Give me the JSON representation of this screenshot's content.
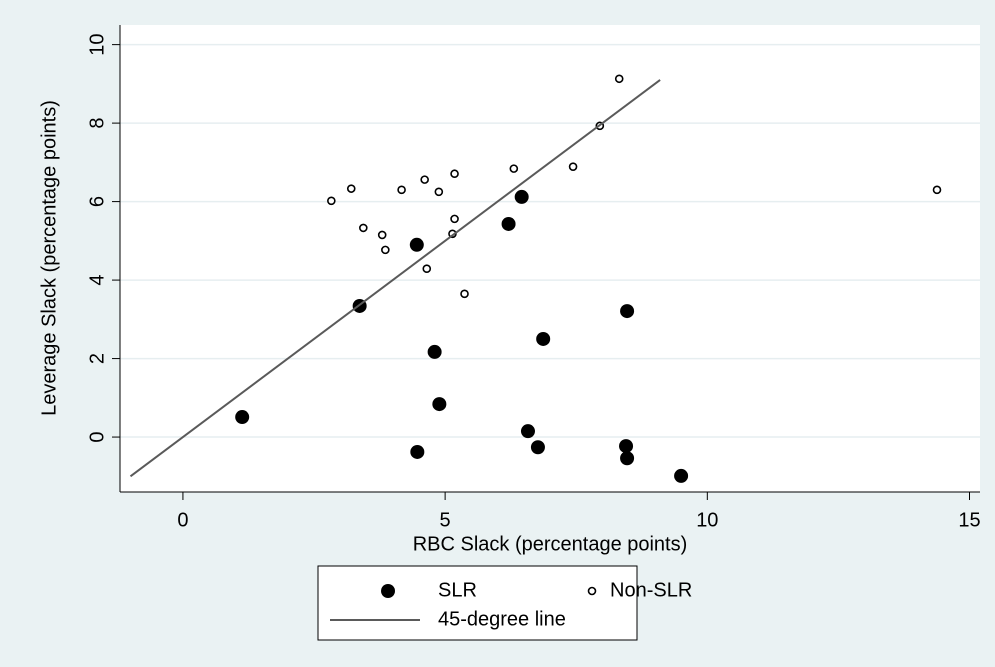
{
  "chart_data": {
    "type": "scatter",
    "x_label": "RBC Slack (percentage points)",
    "y_label": "Leverage Slack (percentage points)",
    "xlim": [
      -1.2,
      15.2
    ],
    "ylim": [
      -1.4,
      10.5
    ],
    "xticks": [
      0,
      5,
      10,
      15
    ],
    "yticks": [
      0,
      2,
      4,
      6,
      8,
      10
    ],
    "grid": true,
    "series": [
      {
        "name": "SLR",
        "color": "#000000",
        "marker": "filled",
        "x": [
          1.13,
          3.37,
          4.46,
          4.47,
          4.8,
          4.89,
          6.21,
          6.46,
          6.58,
          6.77,
          6.87,
          8.47,
          8.45,
          8.47,
          9.5
        ],
        "values": [
          0.51,
          3.34,
          4.9,
          -0.38,
          2.17,
          0.84,
          5.43,
          6.12,
          0.15,
          -0.26,
          2.5,
          3.21,
          -0.23,
          -0.54,
          -0.99
        ]
      },
      {
        "name": "Non-SLR",
        "color": "#000000",
        "marker": "hollow",
        "x": [
          2.83,
          3.21,
          3.44,
          3.8,
          3.86,
          4.17,
          4.61,
          4.65,
          4.88,
          5.14,
          5.18,
          5.18,
          5.37,
          6.31,
          7.44,
          7.95,
          8.32,
          14.38
        ],
        "values": [
          6.02,
          6.33,
          5.33,
          5.15,
          4.77,
          6.3,
          6.56,
          4.29,
          6.25,
          5.18,
          6.71,
          5.56,
          3.65,
          6.84,
          6.89,
          7.93,
          9.13,
          6.3
        ]
      },
      {
        "name": "45-degree line",
        "color": "#5a5a5a",
        "marker": "line",
        "x": [
          -1,
          9.1
        ],
        "values": [
          -1,
          9.1
        ]
      }
    ]
  }
}
